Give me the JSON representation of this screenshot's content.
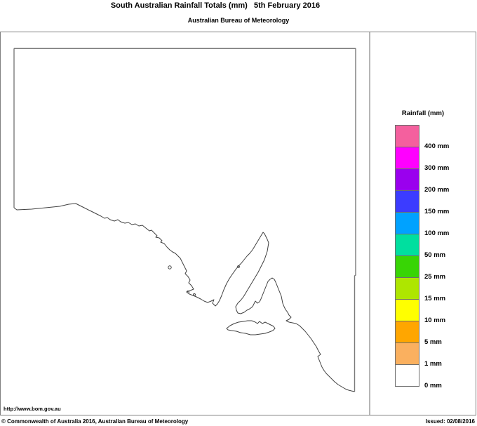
{
  "header": {
    "title": "South Australian Rainfall Totals (mm)   5th February 2016",
    "subtitle": "Australian Bureau of Meteorology"
  },
  "legend": {
    "title": "Rainfall (mm)",
    "items": [
      {
        "color": "#f4609e",
        "label": "400 mm"
      },
      {
        "color": "#ff00ff",
        "label": "300 mm"
      },
      {
        "color": "#9a00ee",
        "label": "200 mm"
      },
      {
        "color": "#3c3cff",
        "label": "150 mm"
      },
      {
        "color": "#00a2ff",
        "label": "100 mm"
      },
      {
        "color": "#00df9f",
        "label": "50 mm"
      },
      {
        "color": "#38d505",
        "label": "25 mm"
      },
      {
        "color": "#aee600",
        "label": "15 mm"
      },
      {
        "color": "#ffff00",
        "label": "10 mm"
      },
      {
        "color": "#ffa600",
        "label": "5 mm"
      },
      {
        "color": "#fab05f",
        "label": "1 mm"
      },
      {
        "color": "#ffffff",
        "label": "0 mm"
      }
    ]
  },
  "map_panel": {
    "url_label": "http://www.bom.gov.au"
  },
  "footer": {
    "copyright": "© Commonwealth of Australia 2016, Australian Bureau of Meteorology",
    "issued": "Issued: 02/08/2016"
  }
}
